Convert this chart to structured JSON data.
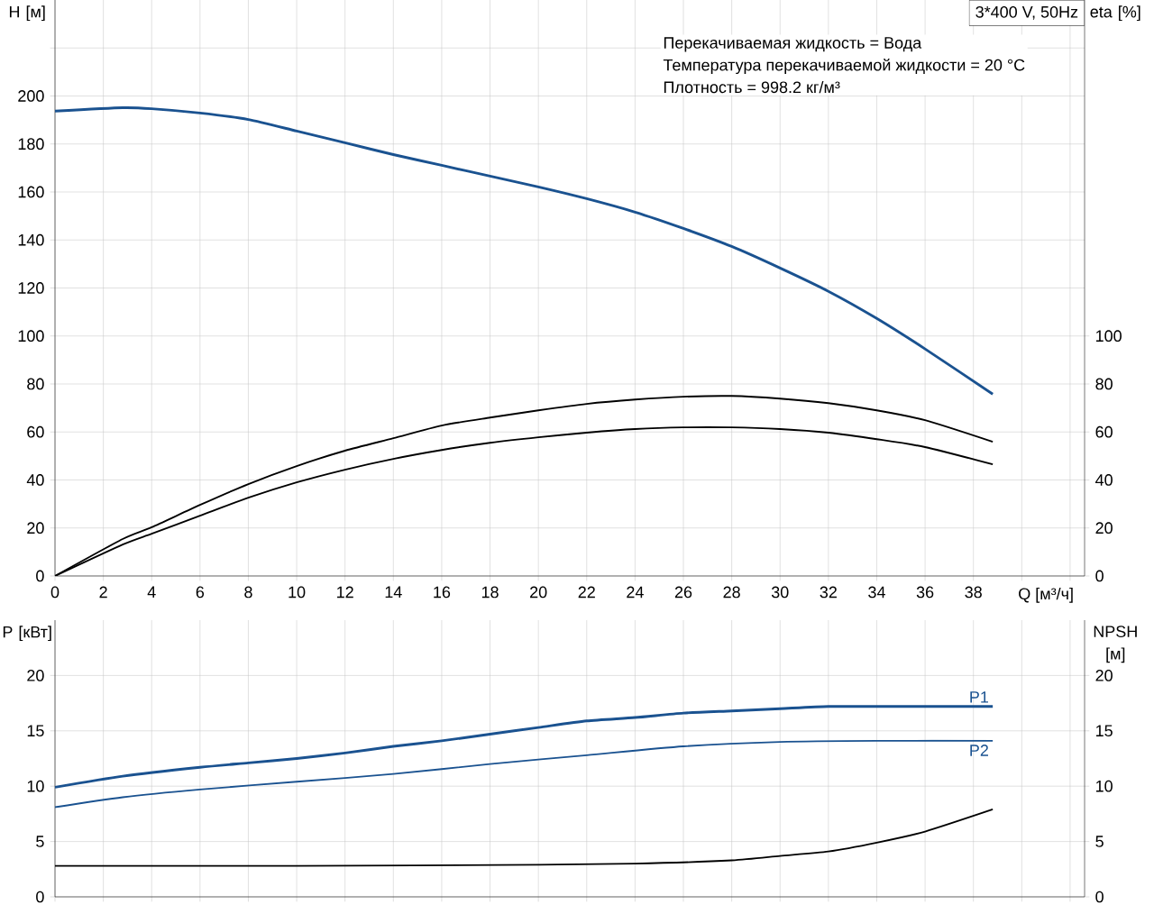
{
  "chart_data": [
    {
      "type": "line",
      "title": "3*400 V, 50Hz",
      "annotations": [
        "Перекачиваемая жидкость = Вода",
        "Температура перекачиваемой жидкости = 20 °C",
        "Плотность = 998.2 кг/м³"
      ],
      "xlabel": "Q [м³/ч]",
      "ylabel": "H [м]",
      "y2label": "eta [%]",
      "xlim": [
        0,
        42.6
      ],
      "xticks": [
        0,
        2,
        4,
        6,
        8,
        10,
        12,
        14,
        16,
        18,
        20,
        22,
        24,
        26,
        28,
        30,
        32,
        34,
        36,
        38,
        {
          "value": 40,
          "label": null
        },
        {
          "value": 42,
          "label": null
        }
      ],
      "ylim": [
        0,
        240
      ],
      "yticks": [
        0,
        20,
        40,
        60,
        80,
        100,
        120,
        140,
        160,
        180,
        200,
        {
          "value": 220,
          "label": null
        }
      ],
      "y2lim": [
        0,
        240
      ],
      "y2ticks": [
        0,
        20,
        40,
        60,
        80,
        100
      ],
      "grid": true,
      "series": [
        {
          "color": "#1a5290",
          "x": [
            0,
            2.8,
            4,
            6,
            8,
            10,
            12,
            14,
            16,
            18,
            20,
            22,
            24,
            26,
            28,
            30,
            32,
            34,
            36,
            38.8
          ],
          "values": [
            193.7,
            195.1,
            194.7,
            192.9,
            190.2,
            185.4,
            180.5,
            175.6,
            171.1,
            166.6,
            162.1,
            157.2,
            151.6,
            144.8,
            137.3,
            128.3,
            118.6,
            107.3,
            94.6,
            75.8
          ]
        },
        {
          "color": "#000000",
          "axis": "y2",
          "x": [
            0,
            2.8,
            4,
            6,
            8,
            10,
            12,
            14,
            16,
            18,
            20,
            22,
            24,
            26,
            28,
            30,
            32,
            34,
            36,
            38.8
          ],
          "values": [
            0,
            15.4,
            20.3,
            29.6,
            38.3,
            45.8,
            52.2,
            57.4,
            62.7,
            66,
            69,
            71.7,
            73.5,
            74.7,
            75,
            73.9,
            72,
            69,
            64.9,
            55.9
          ]
        },
        {
          "color": "#000000",
          "axis": "y2",
          "x": [
            0,
            2.8,
            4,
            6,
            8,
            10,
            12,
            14,
            16,
            18,
            20,
            22,
            24,
            26,
            28,
            30,
            32,
            34,
            36,
            38.8
          ],
          "values": [
            0,
            13.1,
            17.6,
            25.1,
            32.6,
            39,
            44.3,
            48.8,
            52.5,
            55.5,
            57.8,
            59.7,
            61.2,
            61.9,
            61.9,
            61.2,
            59.7,
            57,
            53.7,
            46.5
          ]
        }
      ]
    },
    {
      "type": "line",
      "ylabel": "P [кВт]",
      "y2label": "NPSH [м]",
      "xlim": [
        0,
        42.6
      ],
      "xticks": [
        0,
        2,
        4,
        6,
        8,
        10,
        12,
        14,
        16,
        18,
        20,
        22,
        24,
        26,
        28,
        30,
        32,
        34,
        36,
        38,
        40,
        42
      ],
      "tick_labels": "y",
      "ylim": [
        0,
        25
      ],
      "yticks": [
        0,
        5,
        10,
        15,
        20
      ],
      "y2lim": [
        0,
        25
      ],
      "y2ticks": [
        0,
        5,
        10,
        15,
        20
      ],
      "grid": true,
      "series": [
        {
          "name": "P1",
          "color": "#1a5290",
          "x": [
            0,
            2.8,
            6,
            8,
            10,
            12,
            14,
            16,
            18,
            20,
            22,
            24,
            26,
            28,
            30,
            32,
            34,
            38.8
          ],
          "values": [
            9.9,
            10.9,
            11.7,
            12.1,
            12.5,
            13.0,
            13.6,
            14.1,
            14.7,
            15.3,
            15.9,
            16.2,
            16.6,
            16.8,
            17.0,
            17.2,
            17.2,
            17.2
          ]
        },
        {
          "name": "P2",
          "color": "#1a5290",
          "x": [
            0,
            2.8,
            6,
            10,
            14,
            18,
            22,
            26,
            30,
            34,
            38.8
          ],
          "values": [
            8.1,
            9.0,
            9.7,
            10.4,
            11.1,
            12.0,
            12.8,
            13.6,
            14.0,
            14.1,
            14.1
          ]
        },
        {
          "color": "#000000",
          "axis": "y2",
          "x": [
            0,
            2.8,
            10,
            20,
            24,
            28,
            30,
            32,
            34,
            36,
            38.8
          ],
          "values": [
            2.8,
            2.8,
            2.8,
            2.9,
            3.0,
            3.3,
            3.7,
            4.1,
            4.9,
            5.9,
            7.9
          ]
        }
      ]
    }
  ]
}
